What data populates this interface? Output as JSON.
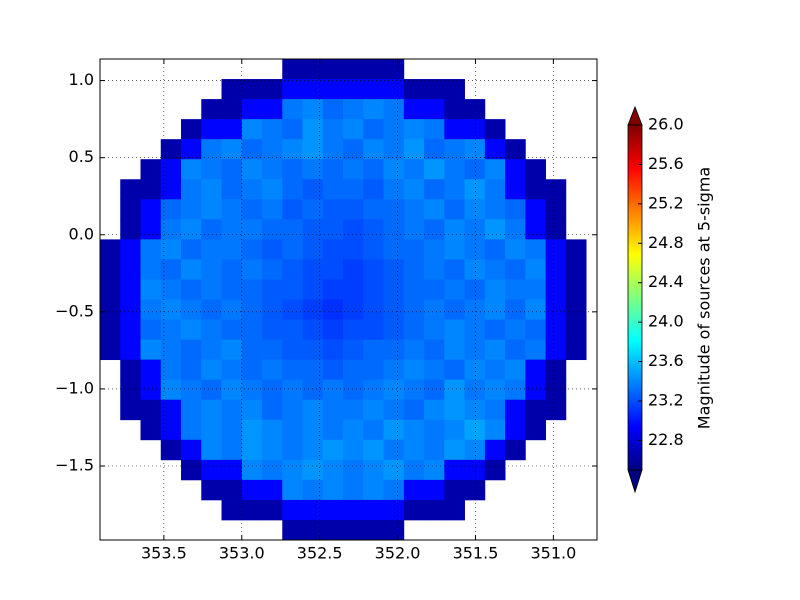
{
  "chart_data": {
    "type": "heatmap",
    "xbins": [
      353.91,
      353.78,
      353.65,
      353.52,
      353.39,
      353.26,
      353.13,
      353.0,
      352.87,
      352.74,
      352.61,
      352.48,
      352.35,
      352.22,
      352.09,
      351.96,
      351.83,
      351.7,
      351.57,
      351.44,
      351.31,
      351.18,
      351.05,
      350.92,
      350.79
    ],
    "ybins": [
      1.14,
      1.01,
      0.88,
      0.75,
      0.62,
      0.49,
      0.36,
      0.23,
      0.1,
      -0.03,
      -0.16,
      -0.29,
      -0.42,
      -0.55,
      -0.68,
      -0.81,
      -0.94,
      -1.07,
      -1.2,
      -1.33,
      -1.46,
      -1.59,
      -1.72,
      -1.85,
      -1.98
    ],
    "values": [
      [
        null,
        null,
        null,
        null,
        null,
        null,
        null,
        null,
        null,
        22.65,
        22.65,
        22.65,
        22.65,
        22.65,
        22.65,
        null,
        null,
        null,
        null,
        null,
        null,
        null,
        null,
        null
      ],
      [
        null,
        null,
        null,
        null,
        null,
        null,
        22.65,
        22.65,
        22.65,
        22.95,
        22.95,
        22.95,
        22.95,
        22.95,
        22.95,
        22.65,
        22.65,
        22.65,
        null,
        null,
        null,
        null,
        null,
        null
      ],
      [
        null,
        null,
        null,
        null,
        null,
        22.65,
        22.65,
        22.95,
        22.95,
        23.35,
        23.4,
        23.3,
        23.35,
        23.4,
        23.35,
        22.95,
        22.95,
        22.65,
        22.65,
        null,
        null,
        null,
        null,
        null
      ],
      [
        null,
        null,
        null,
        null,
        22.65,
        22.95,
        22.95,
        23.4,
        23.35,
        23.3,
        23.45,
        23.35,
        23.4,
        23.3,
        23.35,
        23.4,
        23.35,
        22.95,
        22.95,
        22.65,
        null,
        null,
        null,
        null
      ],
      [
        null,
        null,
        null,
        22.65,
        22.95,
        23.35,
        23.4,
        23.3,
        23.35,
        23.4,
        23.45,
        23.35,
        23.3,
        23.4,
        23.35,
        23.45,
        23.3,
        23.35,
        23.4,
        22.95,
        22.65,
        null,
        null,
        null
      ],
      [
        null,
        null,
        22.65,
        22.95,
        23.4,
        23.35,
        23.3,
        23.4,
        23.35,
        23.3,
        23.35,
        23.3,
        23.35,
        23.3,
        23.4,
        23.35,
        23.45,
        23.35,
        23.3,
        23.4,
        22.95,
        22.65,
        null,
        null
      ],
      [
        null,
        22.65,
        22.65,
        22.95,
        23.35,
        23.4,
        23.3,
        23.35,
        23.4,
        23.3,
        23.25,
        23.3,
        23.3,
        23.25,
        23.35,
        23.4,
        23.3,
        23.35,
        23.45,
        23.35,
        22.95,
        22.65,
        22.65,
        null
      ],
      [
        null,
        22.65,
        22.95,
        23.3,
        23.35,
        23.4,
        23.35,
        23.3,
        23.35,
        23.25,
        23.3,
        23.25,
        23.25,
        23.3,
        23.3,
        23.35,
        23.4,
        23.3,
        23.4,
        23.35,
        23.3,
        22.95,
        22.65,
        null
      ],
      [
        null,
        22.65,
        22.95,
        23.35,
        23.4,
        23.3,
        23.35,
        23.35,
        23.3,
        23.3,
        23.25,
        23.25,
        23.2,
        23.25,
        23.3,
        23.35,
        23.3,
        23.4,
        23.35,
        23.45,
        23.35,
        22.95,
        22.65,
        null
      ],
      [
        22.65,
        22.95,
        23.35,
        23.4,
        23.3,
        23.35,
        23.35,
        23.3,
        23.25,
        23.3,
        23.25,
        23.2,
        23.2,
        23.25,
        23.3,
        23.3,
        23.35,
        23.4,
        23.35,
        23.3,
        23.4,
        23.35,
        22.95,
        22.65
      ],
      [
        22.65,
        22.95,
        23.35,
        23.3,
        23.4,
        23.35,
        23.3,
        23.35,
        23.3,
        23.25,
        23.2,
        23.2,
        23.15,
        23.2,
        23.25,
        23.3,
        23.35,
        23.3,
        23.4,
        23.35,
        23.3,
        23.4,
        22.95,
        22.65
      ],
      [
        22.65,
        22.95,
        23.4,
        23.35,
        23.3,
        23.35,
        23.3,
        23.3,
        23.25,
        23.25,
        23.2,
        23.15,
        23.15,
        23.2,
        23.25,
        23.3,
        23.3,
        23.35,
        23.3,
        23.4,
        23.35,
        23.35,
        22.95,
        22.65
      ],
      [
        22.65,
        22.95,
        23.35,
        23.4,
        23.35,
        23.3,
        23.35,
        23.3,
        23.25,
        23.2,
        23.15,
        23.1,
        23.15,
        23.2,
        23.25,
        23.3,
        23.35,
        23.3,
        23.35,
        23.4,
        23.3,
        23.4,
        22.95,
        22.65
      ],
      [
        22.65,
        22.95,
        23.3,
        23.35,
        23.4,
        23.35,
        23.3,
        23.3,
        23.25,
        23.25,
        23.2,
        23.15,
        23.2,
        23.2,
        23.25,
        23.3,
        23.35,
        23.4,
        23.35,
        23.3,
        23.35,
        23.3,
        22.95,
        22.65
      ],
      [
        22.65,
        22.95,
        23.4,
        23.35,
        23.3,
        23.35,
        23.4,
        23.3,
        23.3,
        23.25,
        23.25,
        23.2,
        23.25,
        23.3,
        23.3,
        23.35,
        23.3,
        23.4,
        23.35,
        23.4,
        23.3,
        23.35,
        22.95,
        22.65
      ],
      [
        null,
        22.65,
        22.95,
        23.35,
        23.3,
        23.4,
        23.35,
        23.3,
        23.35,
        23.3,
        23.3,
        23.25,
        23.3,
        23.3,
        23.35,
        23.4,
        23.35,
        23.3,
        23.4,
        23.35,
        23.4,
        22.95,
        22.65,
        null
      ],
      [
        null,
        22.65,
        22.95,
        23.4,
        23.35,
        23.3,
        23.4,
        23.35,
        23.3,
        23.35,
        23.3,
        23.35,
        23.3,
        23.35,
        23.4,
        23.35,
        23.3,
        23.45,
        23.35,
        23.4,
        23.35,
        22.95,
        22.65,
        null
      ],
      [
        null,
        22.65,
        22.65,
        22.95,
        23.35,
        23.4,
        23.35,
        23.4,
        23.3,
        23.35,
        23.4,
        23.35,
        23.35,
        23.4,
        23.35,
        23.3,
        23.4,
        23.45,
        23.4,
        23.35,
        22.95,
        22.65,
        22.65,
        null
      ],
      [
        null,
        null,
        22.65,
        22.95,
        23.35,
        23.4,
        23.35,
        23.45,
        23.4,
        23.35,
        23.4,
        23.35,
        23.4,
        23.35,
        23.45,
        23.4,
        23.35,
        23.4,
        23.5,
        23.4,
        22.95,
        22.65,
        null,
        null
      ],
      [
        null,
        null,
        null,
        22.65,
        22.95,
        23.4,
        23.35,
        23.45,
        23.4,
        23.35,
        23.4,
        23.45,
        23.4,
        23.45,
        23.35,
        23.4,
        23.35,
        23.45,
        23.4,
        22.95,
        22.65,
        null,
        null,
        null
      ],
      [
        null,
        null,
        null,
        null,
        22.65,
        22.95,
        22.95,
        23.4,
        23.35,
        23.4,
        23.45,
        23.4,
        23.35,
        23.4,
        23.45,
        23.35,
        23.4,
        22.95,
        22.95,
        22.65,
        null,
        null,
        null,
        null
      ],
      [
        null,
        null,
        null,
        null,
        null,
        22.65,
        22.65,
        22.95,
        22.95,
        23.4,
        23.35,
        23.4,
        23.35,
        23.4,
        23.35,
        22.95,
        22.95,
        22.65,
        22.65,
        null,
        null,
        null,
        null,
        null
      ],
      [
        null,
        null,
        null,
        null,
        null,
        null,
        22.65,
        22.65,
        22.65,
        22.95,
        22.95,
        22.95,
        22.95,
        22.95,
        22.95,
        22.65,
        22.65,
        22.65,
        null,
        null,
        null,
        null,
        null,
        null
      ],
      [
        null,
        null,
        null,
        null,
        null,
        null,
        null,
        null,
        null,
        22.65,
        22.65,
        22.65,
        22.65,
        22.65,
        22.65,
        null,
        null,
        null,
        null,
        null,
        null,
        null,
        null,
        null
      ]
    ],
    "xlim": [
      353.91,
      350.72
    ],
    "ylim": [
      -1.98,
      1.14
    ],
    "xticks": [
      353.5,
      {
        "value": 353,
        "label": "353.0"
      },
      352.5,
      {
        "value": 352,
        "label": "352.0"
      },
      351.5,
      {
        "value": 351,
        "label": "351.0"
      }
    ],
    "yticks": [
      {
        "value": 1,
        "label": "1.0"
      },
      0.5,
      {
        "value": 0,
        "label": "0.0"
      },
      {
        "value": -0.5,
        "label": "−0.5"
      },
      {
        "value": -1,
        "label": "−1.0"
      },
      {
        "value": -1.5,
        "label": "−1.5"
      }
    ],
    "grid": true,
    "colorbar": {
      "label": "Magnitude of sources at 5-sigma",
      "colormap": "jet",
      "extend": "both",
      "clim": [
        22.5,
        26
      ],
      "ticks": [
        22.8,
        23.2,
        23.6,
        {
          "value": 24,
          "label": "24.0"
        },
        24.4,
        24.8,
        25.2,
        25.6,
        {
          "value": 26,
          "label": "26.0"
        }
      ]
    }
  }
}
